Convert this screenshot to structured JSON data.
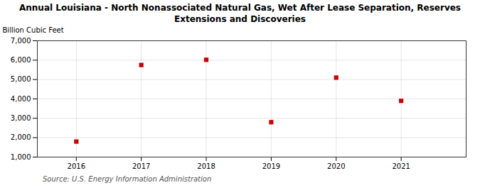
{
  "chart_data": {
    "type": "scatter",
    "title": "Annual Louisiana - North Nonassociated Natural Gas, Wet After Lease Separation, Reserves\nExtensions and Discoveries",
    "ylabel": "Billion Cubic Feet",
    "annotations": [
      "Source: U.S. Energy Information Administration"
    ],
    "x": [
      2016,
      2017,
      2018,
      2019,
      2020,
      2021
    ],
    "values": [
      1800,
      5750,
      6020,
      2800,
      5100,
      3900
    ],
    "color": "#cc0000",
    "marker": "square",
    "xlim": [
      2015.4,
      2022.0
    ],
    "xticks": [
      2016,
      2017,
      2018,
      2019,
      2020,
      2021
    ],
    "ylim": [
      1000,
      7000
    ],
    "yticks": [
      {
        "value": 1000,
        "label": "1,000"
      },
      {
        "value": 2000,
        "label": "2,000"
      },
      {
        "value": 3000,
        "label": "3,000"
      },
      {
        "value": 4000,
        "label": "4,000"
      },
      {
        "value": 5000,
        "label": "5,000"
      },
      {
        "value": 6000,
        "label": "6,000"
      },
      {
        "value": 7000,
        "label": "7,000"
      }
    ],
    "grid": true
  }
}
